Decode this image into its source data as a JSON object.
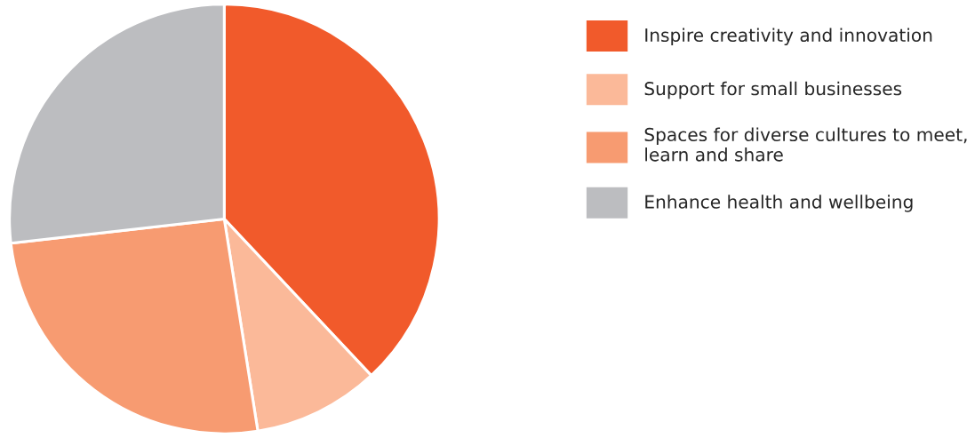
{
  "chart_data": {
    "type": "pie",
    "categories": [
      "Inspire creativity and innovation",
      "Support for small businesses",
      "Spaces for diverse cultures to meet,\nlearn and share",
      "Enhance health and wellbeing"
    ],
    "values": [
      38,
      9.5,
      25.7,
      26.8
    ],
    "colors": [
      "#f15a2b",
      "#fbb999",
      "#f79b71",
      "#bcbdc0"
    ],
    "legend": "right"
  }
}
